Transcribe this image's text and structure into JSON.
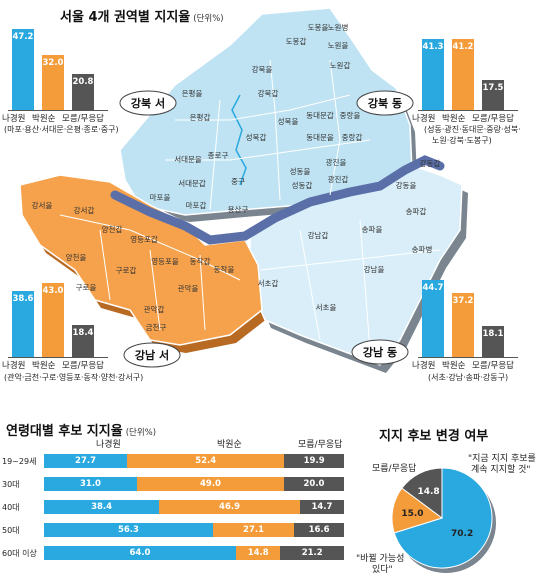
{
  "colors": {
    "blue": "#29a9e0",
    "orange": "#f49b3a",
    "gray": "#555555",
    "gangbuk": "#bfe3f3",
    "gangnam_west": "#f6a24c",
    "gangnam_east": "#d9eef8",
    "river": "#5a6fa8"
  },
  "main": {
    "title": "서울 4개 권역별 지지율",
    "unit": "(단위%)"
  },
  "regions": {
    "gangbuk_west": {
      "badge": "강북 서",
      "note": "(마포·용산·서대문·은평·종로·중구)"
    },
    "gangbuk_east": {
      "badge": "강북 동",
      "note": "(성동·광진·동대문·중랑·성북·",
      "note2": "노원·강북·도봉구)"
    },
    "gangnam_west": {
      "badge": "강남 서",
      "note": "(관악·금천·구로·영등포·동작·양천·강서구)"
    },
    "gangnam_east": {
      "badge": "강남 동",
      "note": "(서초·강남·송파·강동구)"
    }
  },
  "candidates": [
    "나경원",
    "박원순",
    "모름/무응답"
  ],
  "districts": {
    "gangbuk": [
      "도봉을",
      "도봉갑",
      "노원병",
      "노원을",
      "노원갑",
      "강북을",
      "강북갑",
      "은평을",
      "은평갑",
      "성북을",
      "성북갑",
      "동대문을",
      "동대문갑",
      "중랑을",
      "중랑갑",
      "서대문을",
      "서대문갑",
      "종로구",
      "중구",
      "성동을",
      "성동갑",
      "광진을",
      "광진갑",
      "마포을",
      "마포갑",
      "용산구"
    ],
    "gangnam_east": [
      "강동갑",
      "강동을",
      "송파갑",
      "송파을",
      "송파병",
      "강남갑",
      "강남을",
      "서초갑",
      "서초을"
    ],
    "gangnam_west": [
      "강서을",
      "강서갑",
      "양천갑",
      "양천을",
      "영등포갑",
      "영등포을",
      "구로갑",
      "구로을",
      "동작갑",
      "동작을",
      "관악을",
      "관악갑",
      "금천구"
    ]
  },
  "age": {
    "title": "연령대별 후보 지지율",
    "unit": "(단위%)",
    "headers": [
      "나경원",
      "박원순",
      "모름/무응답"
    ],
    "rows": [
      {
        "label": "19~29세",
        "v": [
          "27.7",
          "52.4",
          "19.9"
        ]
      },
      {
        "label": "30대",
        "v": [
          "31.0",
          "49.0",
          "20.0"
        ]
      },
      {
        "label": "40대",
        "v": [
          "38.4",
          "46.9",
          "14.7"
        ]
      },
      {
        "label": "50대",
        "v": [
          "56.3",
          "27.1",
          "16.6"
        ]
      },
      {
        "label": "60대 이상",
        "v": [
          "64.0",
          "14.8",
          "21.2"
        ]
      }
    ]
  },
  "change": {
    "title": "지지 후보 변경 여부",
    "legend_gray": "모름/무응답",
    "keep_label1": "\"지금 지지 후보를",
    "keep_label2": "계속 지지할 것\"",
    "switch_label1": "\"바뀔 가능성",
    "switch_label2": "있다\"",
    "values": [
      "70.2",
      "15.0",
      "14.8"
    ]
  },
  "chart_data": [
    {
      "type": "bar",
      "title": "서울 4개 권역별 지지율",
      "unit": "(단위%)",
      "categories": [
        "나경원",
        "박원순",
        "모름/무응답"
      ],
      "series": [
        {
          "name": "강북 서",
          "values": [
            47.2,
            32.0,
            20.8
          ]
        },
        {
          "name": "강북 동",
          "values": [
            41.3,
            41.2,
            17.5
          ]
        },
        {
          "name": "강남 서",
          "values": [
            38.6,
            43.0,
            18.4
          ]
        },
        {
          "name": "강남 동",
          "values": [
            44.7,
            37.2,
            18.1
          ]
        }
      ]
    },
    {
      "type": "bar",
      "orientation": "horizontal-stacked",
      "title": "연령대별 후보 지지율",
      "unit": "(단위%)",
      "categories": [
        "19~29세",
        "30대",
        "40대",
        "50대",
        "60대 이상"
      ],
      "series": [
        {
          "name": "나경원",
          "values": [
            27.7,
            31.0,
            38.4,
            56.3,
            64.0
          ]
        },
        {
          "name": "박원순",
          "values": [
            52.4,
            49.0,
            46.9,
            27.1,
            14.8
          ]
        },
        {
          "name": "모름/무응답",
          "values": [
            19.9,
            20.0,
            14.7,
            16.6,
            21.2
          ]
        }
      ]
    },
    {
      "type": "pie",
      "title": "지지 후보 변경 여부",
      "categories": [
        "지금 지지 후보를 계속 지지할 것",
        "바뀔 가능성 있다",
        "모름/무응답"
      ],
      "values": [
        70.2,
        15.0,
        14.8
      ]
    }
  ]
}
